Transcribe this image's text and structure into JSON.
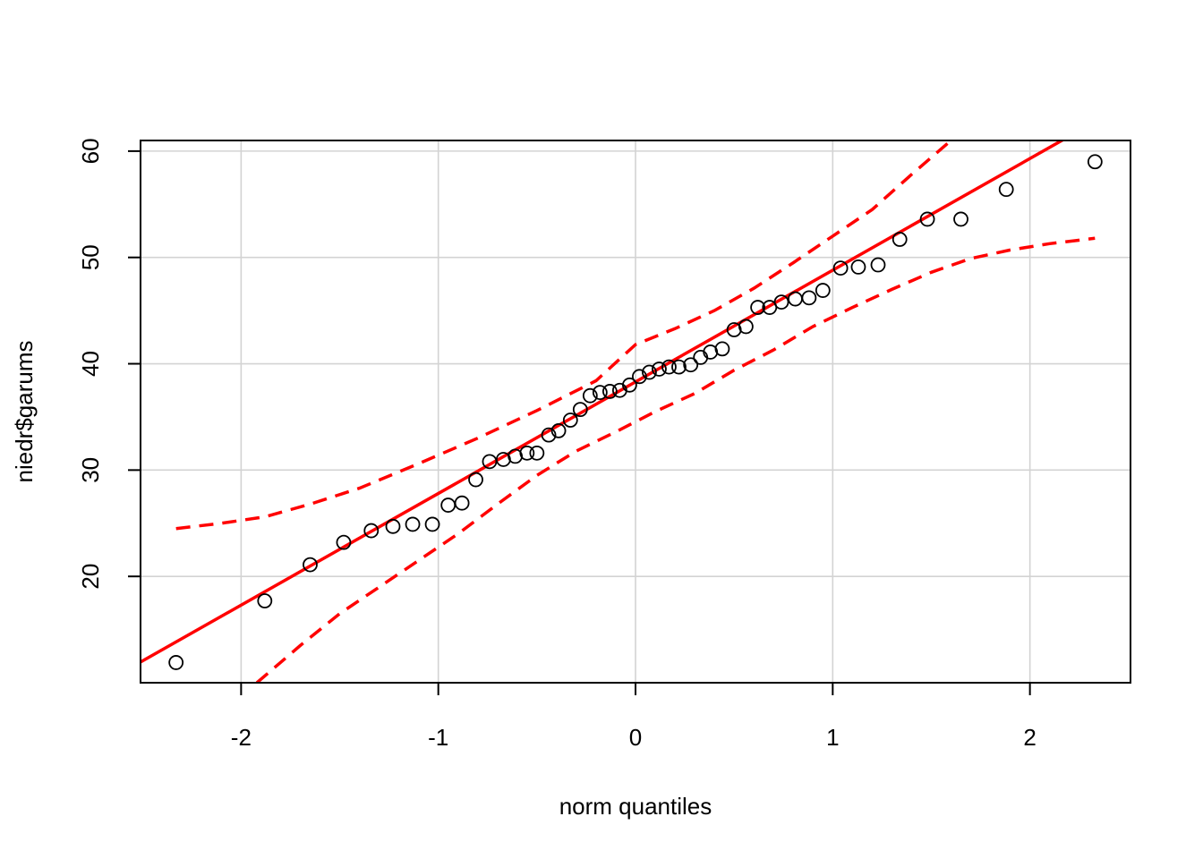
{
  "chart_data": {
    "type": "scatter",
    "title": "",
    "xlabel": "norm quantiles",
    "ylabel": "niedr$garums",
    "xlim": [
      -2.51,
      2.51
    ],
    "ylim": [
      10,
      61
    ],
    "xticks": [
      "-2",
      "-1",
      "0",
      "1",
      "2"
    ],
    "xtick_values": [
      -2,
      -1,
      0,
      1,
      2
    ],
    "yticks": [
      "20",
      "30",
      "40",
      "50",
      "60"
    ],
    "ytick_values": [
      20,
      30,
      40,
      50,
      60
    ],
    "grid": true,
    "colors": {
      "points": "#000000",
      "reference_line": "#ff0000",
      "envelope": "#ff0000",
      "grid": "#d3d3d3"
    },
    "points": [
      {
        "x": -2.33,
        "y": 11.9
      },
      {
        "x": -1.88,
        "y": 17.7
      },
      {
        "x": -1.65,
        "y": 21.1
      },
      {
        "x": -1.48,
        "y": 23.2
      },
      {
        "x": -1.34,
        "y": 24.3
      },
      {
        "x": -1.23,
        "y": 24.7
      },
      {
        "x": -1.13,
        "y": 24.9
      },
      {
        "x": -1.03,
        "y": 24.9
      },
      {
        "x": -0.95,
        "y": 26.7
      },
      {
        "x": -0.88,
        "y": 26.9
      },
      {
        "x": -0.81,
        "y": 29.1
      },
      {
        "x": -0.74,
        "y": 30.8
      },
      {
        "x": -0.67,
        "y": 31.0
      },
      {
        "x": -0.61,
        "y": 31.3
      },
      {
        "x": -0.55,
        "y": 31.6
      },
      {
        "x": -0.5,
        "y": 31.6
      },
      {
        "x": -0.44,
        "y": 33.3
      },
      {
        "x": -0.39,
        "y": 33.7
      },
      {
        "x": -0.33,
        "y": 34.7
      },
      {
        "x": -0.28,
        "y": 35.7
      },
      {
        "x": -0.23,
        "y": 37.0
      },
      {
        "x": -0.18,
        "y": 37.3
      },
      {
        "x": -0.13,
        "y": 37.4
      },
      {
        "x": -0.08,
        "y": 37.5
      },
      {
        "x": -0.03,
        "y": 38.0
      },
      {
        "x": 0.02,
        "y": 38.8
      },
      {
        "x": 0.07,
        "y": 39.2
      },
      {
        "x": 0.12,
        "y": 39.5
      },
      {
        "x": 0.17,
        "y": 39.7
      },
      {
        "x": 0.22,
        "y": 39.7
      },
      {
        "x": 0.28,
        "y": 39.9
      },
      {
        "x": 0.33,
        "y": 40.6
      },
      {
        "x": 0.38,
        "y": 41.1
      },
      {
        "x": 0.44,
        "y": 41.4
      },
      {
        "x": 0.5,
        "y": 43.2
      },
      {
        "x": 0.56,
        "y": 43.5
      },
      {
        "x": 0.62,
        "y": 45.3
      },
      {
        "x": 0.68,
        "y": 45.3
      },
      {
        "x": 0.74,
        "y": 45.8
      },
      {
        "x": 0.81,
        "y": 46.1
      },
      {
        "x": 0.88,
        "y": 46.2
      },
      {
        "x": 0.95,
        "y": 46.9
      },
      {
        "x": 1.04,
        "y": 49.0
      },
      {
        "x": 1.13,
        "y": 49.1
      },
      {
        "x": 1.23,
        "y": 49.3
      },
      {
        "x": 1.34,
        "y": 51.7
      },
      {
        "x": 1.48,
        "y": 53.6
      },
      {
        "x": 1.65,
        "y": 53.6
      },
      {
        "x": 1.88,
        "y": 56.4
      },
      {
        "x": 2.33,
        "y": 59.0
      }
    ],
    "reference_line": {
      "intercept": 38.3,
      "slope": 10.5
    },
    "envelope_upper": [
      {
        "x": -2.33,
        "y": 24.5
      },
      {
        "x": -2.1,
        "y": 25.0
      },
      {
        "x": -1.88,
        "y": 25.6
      },
      {
        "x": -1.65,
        "y": 26.8
      },
      {
        "x": -1.4,
        "y": 28.3
      },
      {
        "x": -1.1,
        "y": 30.6
      },
      {
        "x": -0.8,
        "y": 33.0
      },
      {
        "x": -0.5,
        "y": 35.6
      },
      {
        "x": -0.2,
        "y": 38.4
      },
      {
        "x": 0.0,
        "y": 41.8
      },
      {
        "x": 0.2,
        "y": 43.3
      },
      {
        "x": 0.4,
        "y": 45.0
      },
      {
        "x": 0.6,
        "y": 47.1
      },
      {
        "x": 0.8,
        "y": 49.5
      },
      {
        "x": 1.0,
        "y": 52.0
      },
      {
        "x": 1.2,
        "y": 54.5
      },
      {
        "x": 1.4,
        "y": 57.8
      },
      {
        "x": 1.6,
        "y": 61.0
      }
    ],
    "envelope_lower": [
      {
        "x": -1.92,
        "y": 10.0
      },
      {
        "x": -1.7,
        "y": 13.5
      },
      {
        "x": -1.5,
        "y": 16.5
      },
      {
        "x": -1.3,
        "y": 19.0
      },
      {
        "x": -1.1,
        "y": 21.5
      },
      {
        "x": -0.9,
        "y": 24.0
      },
      {
        "x": -0.7,
        "y": 26.8
      },
      {
        "x": -0.5,
        "y": 29.5
      },
      {
        "x": -0.3,
        "y": 31.8
      },
      {
        "x": -0.1,
        "y": 33.6
      },
      {
        "x": 0.1,
        "y": 35.5
      },
      {
        "x": 0.3,
        "y": 37.2
      },
      {
        "x": 0.5,
        "y": 39.4
      },
      {
        "x": 0.7,
        "y": 41.3
      },
      {
        "x": 0.9,
        "y": 43.5
      },
      {
        "x": 1.1,
        "y": 45.3
      },
      {
        "x": 1.3,
        "y": 47.0
      },
      {
        "x": 1.5,
        "y": 48.6
      },
      {
        "x": 1.7,
        "y": 49.9
      },
      {
        "x": 1.9,
        "y": 50.7
      },
      {
        "x": 2.1,
        "y": 51.3
      },
      {
        "x": 2.33,
        "y": 51.8
      }
    ]
  }
}
